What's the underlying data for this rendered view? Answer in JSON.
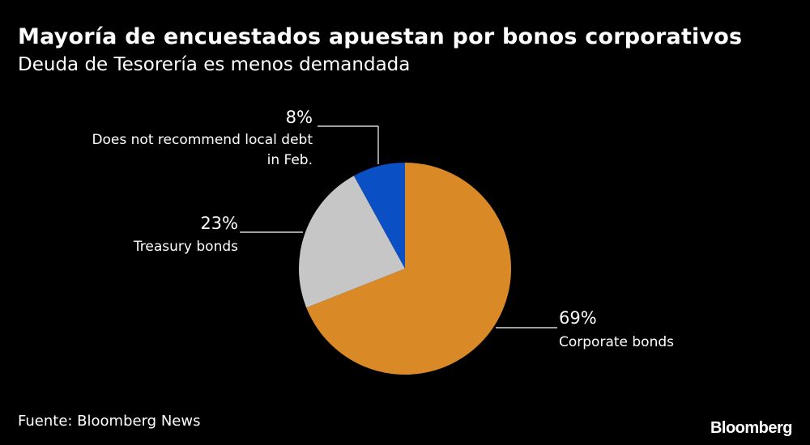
{
  "header": {
    "title": "Mayoría de encuestados apuestan por bonos corporativos",
    "subtitle": "Deuda de Tesorería es menos demandada"
  },
  "footer": {
    "source": "Fuente: Bloomberg News",
    "brand": "Bloomberg"
  },
  "chart_data": {
    "type": "pie",
    "title": "Mayoría de encuestados apuestan por bonos corporativos",
    "subtitle": "Deuda de Tesorería es menos demandada",
    "slices": [
      {
        "label": "Corporate bonds",
        "value": 69,
        "value_label": "69%",
        "color": "#d98a26"
      },
      {
        "label": "Treasury bonds",
        "value": 23,
        "value_label": "23%",
        "color": "#c6c6c6"
      },
      {
        "label": "Does not recommend local debt in Feb.",
        "label_lines": [
          "Does not recommend local debt",
          "in Feb."
        ],
        "value": 8,
        "value_label": "8%",
        "color": "#0a4fc4"
      }
    ]
  }
}
